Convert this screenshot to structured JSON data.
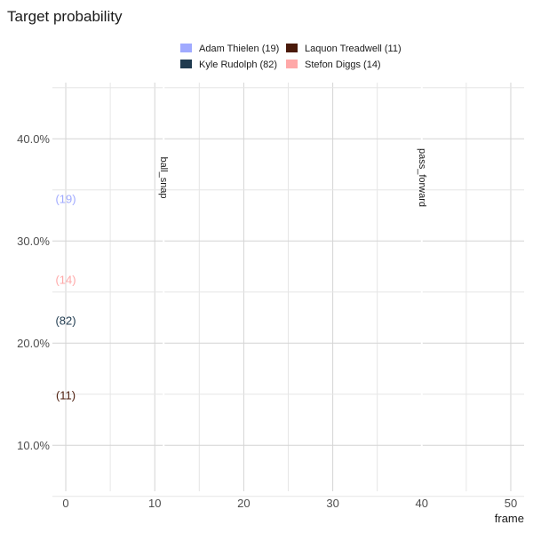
{
  "chart_data": {
    "type": "line",
    "title": "Target probability",
    "xlabel": "frame",
    "ylabel": "",
    "xlim": [
      -1.5,
      51.5
    ],
    "ylim": [
      0.055,
      0.455
    ],
    "x_ticks": [
      0,
      10,
      20,
      30,
      40,
      50
    ],
    "x_tick_labels": [
      "0",
      "10",
      "20",
      "30",
      "40",
      "50"
    ],
    "y_ticks": [
      0.1,
      0.2,
      0.3,
      0.4
    ],
    "y_tick_labels": [
      "10.0%",
      "20.0%",
      "30.0%",
      "40.0%"
    ],
    "grid": true,
    "legend": {
      "position": "top",
      "entries": [
        {
          "name": "Adam Thielen (19)",
          "color": "#a0aaff"
        },
        {
          "name": "Laquon Treadwell (11)",
          "color": "#4a1a0a"
        },
        {
          "name": "Kyle Rudolph (82)",
          "color": "#1f3a4f"
        },
        {
          "name": "Stefon Diggs (14)",
          "color": "#ffa8a8"
        }
      ]
    },
    "series": [
      {
        "name": "Adam Thielen (19)",
        "end_label": "(19)",
        "color": "#a0aaff",
        "x": [
          0
        ],
        "y": [
          0.341
        ]
      },
      {
        "name": "Stefon Diggs (14)",
        "end_label": "(14)",
        "color": "#ffa8a8",
        "x": [
          0
        ],
        "y": [
          0.262
        ]
      },
      {
        "name": "Kyle Rudolph (82)",
        "end_label": "(82)",
        "color": "#1f3a4f",
        "x": [
          0
        ],
        "y": [
          0.222
        ]
      },
      {
        "name": "Laquon Treadwell (11)",
        "end_label": "(11)",
        "color": "#4a1a0a",
        "x": [
          0
        ],
        "y": [
          0.149
        ]
      }
    ],
    "events": [
      {
        "label": "ball_snap",
        "x": 11
      },
      {
        "label": "pass_forward",
        "x": 40
      }
    ]
  }
}
